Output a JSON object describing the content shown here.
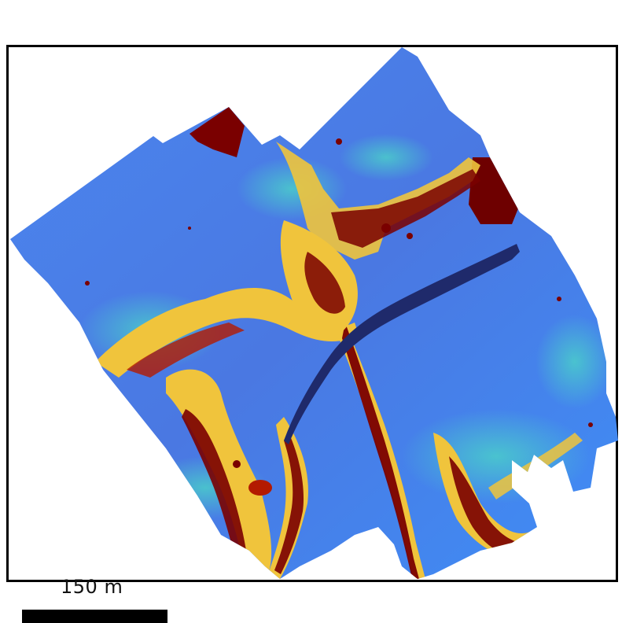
{
  "map": {
    "scale_bar": {
      "label": "150 m"
    },
    "palette": {
      "deep_blue": "#1f2a6b",
      "blue": "#4a7be6",
      "light_blue": "#3f8fff",
      "cyan": "#38c8d8",
      "green": "#7de07a",
      "yellow": "#f0c43c",
      "dark_red": "#7a0000",
      "red": "#b31a00"
    }
  }
}
